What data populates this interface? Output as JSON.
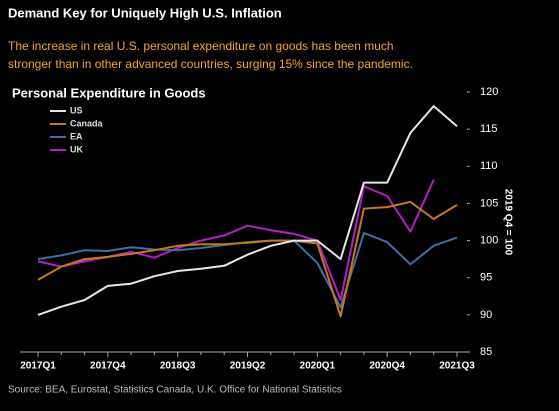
{
  "chart_data": {
    "type": "line",
    "title": "Demand Key for Uniquely High U.S. Inflation",
    "subtitle": [
      "The increase in real U.S. personal expenditure on goods has been much",
      "stronger than in other advanced countries, surging 15% since the pandemic."
    ],
    "chart_title": "Personal Expenditure in Goods",
    "y_label": "2019 Q4 = 100",
    "source": "Source: BEA, Eurostat, Statistics Canada, U.K. Office for National Statistics",
    "categories": [
      "2017Q1",
      null,
      null,
      "2017Q4",
      null,
      null,
      "2018Q3",
      null,
      null,
      "2019Q2",
      null,
      null,
      "2020Q1",
      null,
      null,
      "2020Q4",
      null,
      null,
      "2021Q3"
    ],
    "ylim": [
      85,
      120
    ],
    "yticks": [
      85,
      90,
      95,
      100,
      105,
      110,
      115,
      120
    ],
    "y_axis_side": "right",
    "legend": "upper left",
    "series": [
      {
        "name": "US",
        "color": "#e6e6e6",
        "values": [
          90.0,
          91.1,
          92.0,
          93.9,
          94.2,
          95.2,
          95.9,
          96.2,
          96.6,
          98.1,
          99.3,
          100.0,
          100.0,
          97.5,
          107.8,
          107.8,
          114.5,
          118.1,
          115.4
        ]
      },
      {
        "name": "Canada",
        "color": "#c8781e",
        "values": [
          94.7,
          96.5,
          97.5,
          97.8,
          98.2,
          98.7,
          99.3,
          99.5,
          99.5,
          99.7,
          100.0,
          100.0,
          99.6,
          89.8,
          104.3,
          104.5,
          105.2,
          102.9,
          104.8
        ]
      },
      {
        "name": "EA",
        "color": "#3d6fa3",
        "values": [
          97.5,
          98.0,
          98.7,
          98.6,
          99.1,
          98.8,
          98.7,
          99.0,
          99.4,
          99.8,
          100.0,
          100.0,
          97.0,
          91.0,
          101.0,
          99.8,
          96.8,
          99.3,
          100.4
        ]
      },
      {
        "name": "UK",
        "color": "#b21fc4",
        "values": [
          97.2,
          96.5,
          97.2,
          97.8,
          98.5,
          97.7,
          99.0,
          100.0,
          100.7,
          102.0,
          101.4,
          100.9,
          100.0,
          92.0,
          107.3,
          106.0,
          101.2,
          108.2,
          null
        ]
      }
    ]
  }
}
